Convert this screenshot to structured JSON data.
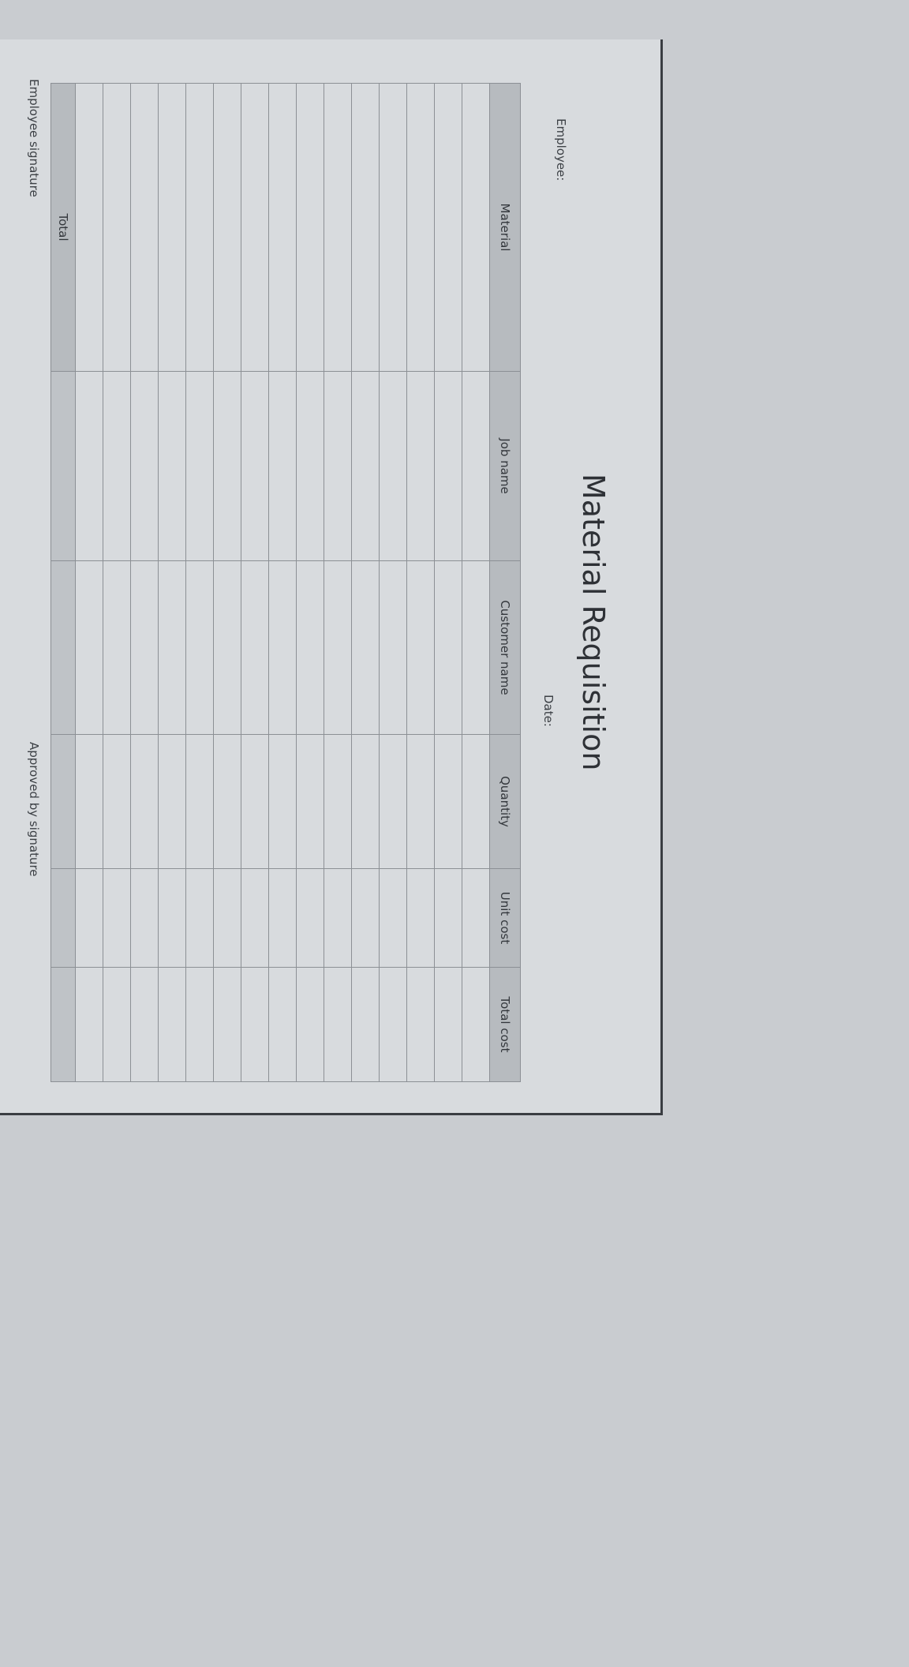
{
  "document": {
    "title": "Material Requisition",
    "employee_label": "Employee:",
    "date_label": "Date:",
    "employee_signature_label": "Employee signature",
    "approved_signature_label": "Approved by signature"
  },
  "table": {
    "columns": [
      "Material",
      "Job name",
      "Customer name",
      "Quantity",
      "Unit cost",
      "Total cost"
    ],
    "row_count": 15,
    "total_label": "Total"
  },
  "colors": {
    "paper": "#d8dbde",
    "header_fill": "#b7bbbf",
    "background": "#c9ccd0"
  }
}
